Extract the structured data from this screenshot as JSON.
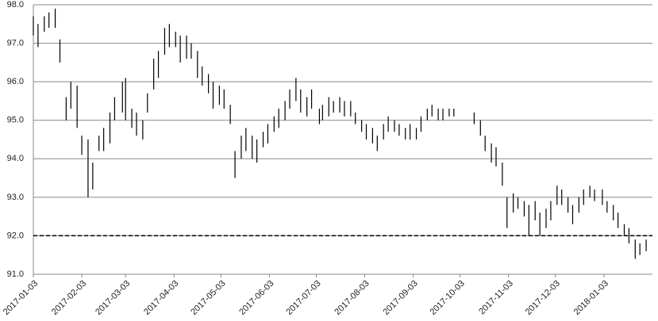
{
  "chart_data": {
    "type": "hilo",
    "color": "#000000",
    "grid": true,
    "reference_line": 92,
    "x": [
      "2017-01-03",
      "2017-01-06",
      "2017-01-10",
      "2017-01-13",
      "2017-01-17",
      "2017-01-20",
      "2017-01-24",
      "2017-01-27",
      "2017-01-31",
      "2017-02-03",
      "2017-02-07",
      "2017-02-10",
      "2017-02-14",
      "2017-02-17",
      "2017-02-21",
      "2017-02-24",
      "2017-03-01",
      "2017-03-03",
      "2017-03-07",
      "2017-03-10",
      "2017-03-14",
      "2017-03-17",
      "2017-03-21",
      "2017-03-24",
      "2017-03-28",
      "2017-03-31",
      "2017-04-04",
      "2017-04-07",
      "2017-04-11",
      "2017-04-14",
      "2017-04-18",
      "2017-04-21",
      "2017-04-25",
      "2017-04-28",
      "2017-05-02",
      "2017-05-05",
      "2017-05-09",
      "2017-05-12",
      "2017-05-16",
      "2017-05-19",
      "2017-05-23",
      "2017-05-26",
      "2017-05-30",
      "2017-06-02",
      "2017-06-06",
      "2017-06-09",
      "2017-06-13",
      "2017-06-16",
      "2017-06-20",
      "2017-06-23",
      "2017-06-27",
      "2017-06-30",
      "2017-07-05",
      "2017-07-07",
      "2017-07-11",
      "2017-07-14",
      "2017-07-18",
      "2017-07-21",
      "2017-07-25",
      "2017-07-28",
      "2017-08-01",
      "2017-08-04",
      "2017-08-08",
      "2017-08-11",
      "2017-08-15",
      "2017-08-18",
      "2017-08-22",
      "2017-08-25",
      "2017-08-29",
      "2017-09-01",
      "2017-09-05",
      "2017-09-08",
      "2017-09-12",
      "2017-09-15",
      "2017-09-19",
      "2017-09-22",
      "2017-09-26",
      "2017-09-29",
      "2017-10-12",
      "2017-10-16",
      "2017-10-19",
      "2017-10-23",
      "2017-10-26",
      "2017-10-30",
      "2017-11-02",
      "2017-11-06",
      "2017-11-09",
      "2017-11-13",
      "2017-11-16",
      "2017-11-20",
      "2017-11-23",
      "2017-11-27",
      "2017-11-30",
      "2017-12-04",
      "2017-12-07",
      "2017-12-11",
      "2017-12-14",
      "2017-12-18",
      "2017-12-21",
      "2017-12-25",
      "2017-12-28",
      "2018-01-02",
      "2018-01-05",
      "2018-01-09",
      "2018-01-12",
      "2018-01-16",
      "2018-01-19",
      "2018-01-23",
      "2018-01-26",
      "2018-01-30"
    ],
    "high": [
      97.7,
      97.5,
      97.7,
      97.8,
      97.9,
      97.1,
      95.6,
      96.0,
      95.9,
      94.6,
      94.5,
      93.9,
      94.6,
      94.8,
      95.2,
      95.6,
      96.0,
      96.1,
      95.3,
      95.2,
      95.0,
      95.7,
      96.6,
      96.8,
      97.4,
      97.5,
      97.3,
      97.2,
      97.2,
      97.0,
      96.8,
      96.4,
      96.2,
      96.0,
      95.9,
      95.8,
      95.4,
      94.2,
      94.6,
      94.8,
      94.6,
      94.5,
      94.7,
      94.9,
      95.1,
      95.3,
      95.5,
      95.8,
      96.1,
      95.8,
      95.6,
      95.8,
      95.3,
      95.4,
      95.6,
      95.5,
      95.6,
      95.5,
      95.5,
      95.2,
      95.0,
      94.9,
      94.8,
      94.6,
      94.9,
      95.1,
      95.0,
      94.9,
      94.8,
      94.9,
      94.8,
      95.1,
      95.3,
      95.4,
      95.3,
      95.3,
      95.3,
      95.3,
      95.2,
      95.0,
      94.6,
      94.4,
      94.3,
      93.9,
      93.0,
      93.1,
      93.0,
      92.9,
      92.8,
      92.9,
      92.6,
      92.7,
      92.9,
      93.3,
      93.2,
      93.0,
      92.8,
      93.0,
      93.2,
      93.3,
      93.2,
      93.2,
      92.9,
      92.8,
      92.6,
      92.3,
      92.2,
      91.9,
      91.8,
      91.9
    ],
    "low": [
      97.2,
      96.9,
      97.3,
      97.4,
      97.4,
      96.5,
      95.0,
      95.3,
      94.8,
      94.1,
      93.0,
      93.2,
      94.2,
      94.2,
      94.4,
      95.0,
      95.2,
      95.0,
      94.8,
      94.6,
      94.5,
      95.2,
      95.8,
      96.1,
      96.7,
      96.9,
      96.9,
      96.5,
      96.6,
      96.6,
      96.1,
      95.9,
      95.7,
      95.3,
      95.4,
      95.3,
      94.9,
      93.5,
      94.0,
      94.2,
      94.0,
      93.9,
      94.3,
      94.4,
      94.7,
      94.8,
      95.0,
      95.3,
      95.5,
      95.2,
      95.1,
      95.3,
      94.9,
      95.0,
      95.1,
      95.2,
      95.2,
      95.1,
      95.1,
      94.9,
      94.7,
      94.5,
      94.4,
      94.2,
      94.5,
      94.7,
      94.7,
      94.6,
      94.5,
      94.5,
      94.5,
      94.7,
      95.0,
      95.1,
      95.0,
      95.0,
      95.1,
      95.1,
      94.9,
      94.6,
      94.2,
      93.9,
      93.8,
      93.3,
      92.2,
      92.6,
      92.7,
      92.5,
      92.0,
      92.4,
      92.0,
      92.2,
      92.4,
      92.8,
      92.8,
      92.6,
      92.3,
      92.6,
      92.8,
      93.0,
      92.9,
      92.8,
      92.6,
      92.4,
      92.2,
      92.0,
      91.8,
      91.4,
      91.5,
      91.6
    ],
    "xlim": [
      "2017-01-03",
      "2018-02-01"
    ],
    "xticks": [
      "2017-01-03",
      "2017-02-03",
      "2017-03-03",
      "2017-04-03",
      "2017-05-03",
      "2017-06-03",
      "2017-07-03",
      "2017-08-03",
      "2017-09-03",
      "2017-10-03",
      "2017-11-03",
      "2017-12-03",
      "2018-01-03"
    ],
    "ylim": [
      91,
      98
    ],
    "yticks": [
      {
        "value": 91,
        "label": "91.0"
      },
      {
        "value": 92,
        "label": "92.0"
      },
      {
        "value": 93,
        "label": "93.0"
      },
      {
        "value": 94,
        "label": "94.0"
      },
      {
        "value": 95,
        "label": "95.0"
      },
      {
        "value": 96,
        "label": "96.0"
      },
      {
        "value": 97,
        "label": "97.0"
      },
      {
        "value": 98,
        "label": "98.0"
      }
    ]
  }
}
